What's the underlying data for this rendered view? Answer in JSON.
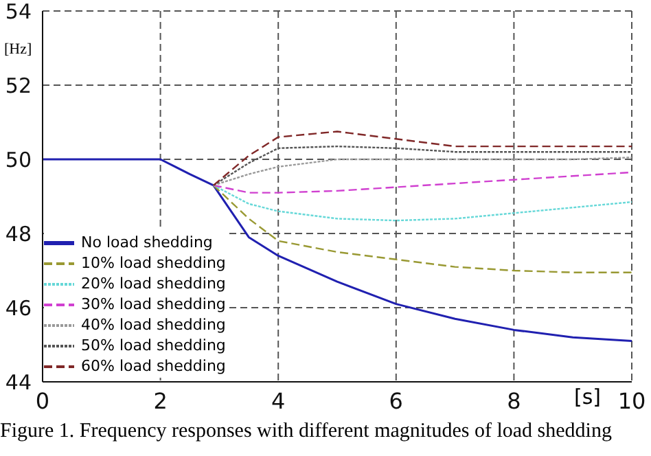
{
  "chart_data": {
    "type": "line",
    "ylabel": "[Hz]",
    "xlabel": "[s]",
    "annotations": [
      "Figure 1. Frequency responses with different magnitudes of load shedding"
    ],
    "x": [
      0,
      2,
      2.5,
      2.9,
      3.5,
      4,
      5,
      6,
      7,
      8,
      9,
      10
    ],
    "xlim": [
      0,
      10
    ],
    "xticks": [
      0,
      2,
      4,
      6,
      8,
      10
    ],
    "ylim": [
      44,
      54
    ],
    "yticks": [
      44,
      46,
      48,
      50,
      52,
      54
    ],
    "grid": true,
    "legend": "bottom left",
    "marker": "none",
    "series": [
      {
        "name": "No load shedding",
        "color": "#2020b0",
        "line_style": "solid",
        "values": [
          50,
          50,
          49.6,
          49.3,
          47.9,
          47.4,
          46.7,
          46.1,
          45.7,
          45.4,
          45.2,
          45.1
        ]
      },
      {
        "name": "10% load shedding",
        "color": "#999933",
        "line_style": "dashed",
        "values": [
          null,
          null,
          null,
          49.3,
          48.4,
          47.8,
          47.5,
          47.3,
          47.1,
          47.0,
          46.95,
          46.95
        ]
      },
      {
        "name": "20% load shedding",
        "color": "#66d8d8",
        "line_style": "dotted",
        "values": [
          null,
          null,
          null,
          49.3,
          48.8,
          48.6,
          48.4,
          48.35,
          48.4,
          48.55,
          48.7,
          48.85
        ]
      },
      {
        "name": "30% load shedding",
        "color": "#d040d0",
        "line_style": "dashed",
        "values": [
          null,
          null,
          null,
          49.3,
          49.1,
          49.1,
          49.15,
          49.25,
          49.35,
          49.45,
          49.55,
          49.65
        ]
      },
      {
        "name": "40% load shedding",
        "color": "#999999",
        "line_style": "dotted",
        "values": [
          null,
          null,
          null,
          49.3,
          49.6,
          49.8,
          50,
          50,
          50,
          50,
          50,
          50.05
        ]
      },
      {
        "name": "50% load shedding",
        "color": "#555555",
        "line_style": "dotted",
        "values": [
          null,
          null,
          null,
          49.3,
          49.9,
          50.3,
          50.35,
          50.3,
          50.2,
          50.2,
          50.2,
          50.2
        ]
      },
      {
        "name": "60% load shedding",
        "color": "#802828",
        "line_style": "dashed",
        "values": [
          null,
          null,
          null,
          49.3,
          50.1,
          50.6,
          50.75,
          50.55,
          50.35,
          50.35,
          50.35,
          50.35
        ]
      }
    ]
  }
}
